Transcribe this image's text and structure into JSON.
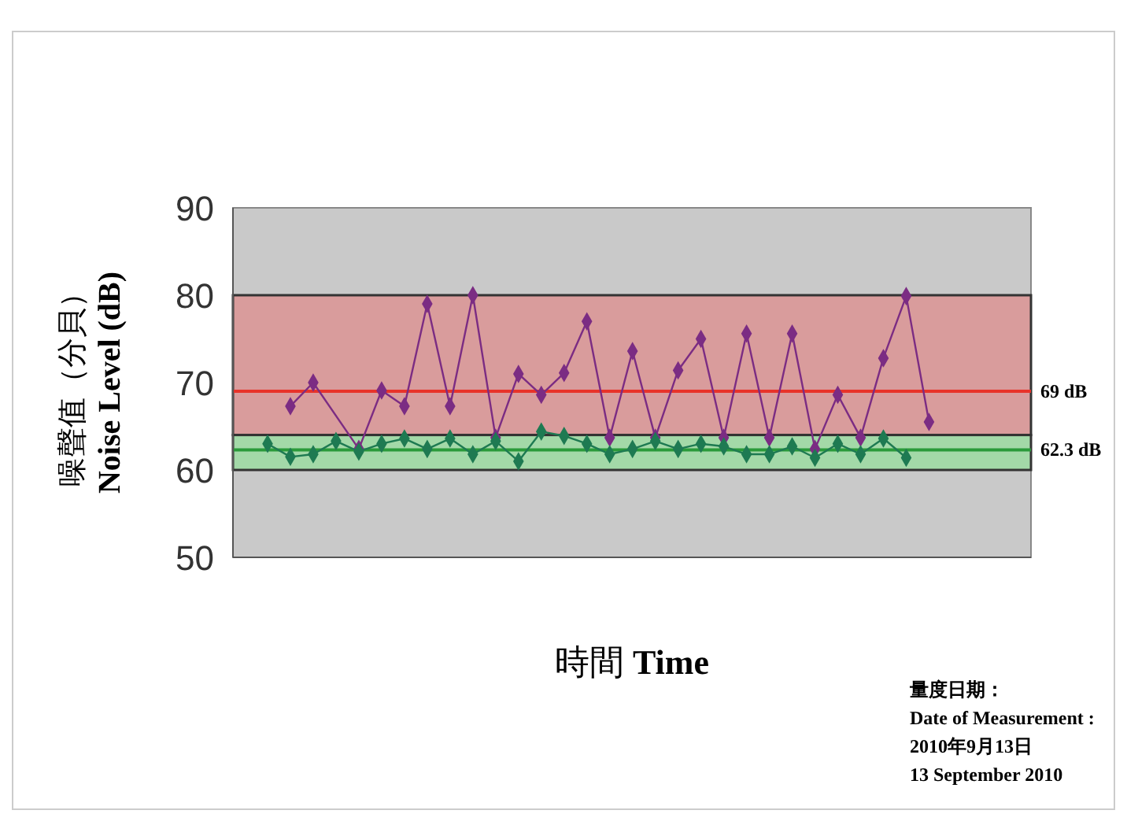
{
  "chart_data": {
    "type": "line",
    "xlabel": "時間 Time",
    "ylabel": "噪聲值（分貝）\nNoise Level (dB)",
    "categories": [
      null,
      null,
      null,
      null,
      null,
      null,
      null,
      null,
      null,
      null,
      null,
      null,
      null,
      null,
      null,
      null,
      null,
      null,
      null,
      null,
      null,
      null,
      null,
      null,
      null,
      null,
      null,
      null,
      null,
      null
    ],
    "ylim": [
      50,
      90
    ],
    "yticks": [
      50,
      60,
      70,
      80,
      90
    ],
    "tick_labels": "y",
    "grid": false,
    "marker": "diamond",
    "line_style": "solid",
    "series": [
      {
        "color": "#7b2c83",
        "values": [
          null,
          67.3,
          70.0,
          null,
          62.4,
          69.1,
          67.3,
          79,
          67.3,
          80,
          63.7,
          71,
          68.6,
          71.1,
          77,
          63.7,
          73.6,
          63.7,
          71.4,
          75,
          63.7,
          75.6,
          63.7,
          75.6,
          62.4,
          68.6,
          63.7,
          72.8,
          79.9,
          65.5
        ]
      },
      {
        "color": "#1e7a52",
        "values": [
          63.0,
          61.5,
          61.8,
          63.3,
          62.1,
          63.0,
          63.6,
          62.4,
          63.6,
          61.8,
          63.3,
          61.0,
          64.4,
          63.9,
          63.0,
          61.8,
          62.4,
          63.3,
          62.4,
          63.0,
          62.7,
          61.8,
          61.8,
          62.7,
          61.4,
          63.0,
          61.8,
          63.6,
          61.4,
          null
        ]
      }
    ],
    "bands": [
      {
        "axis": "y",
        "from": 64,
        "to": 80,
        "color": "#d99c9c"
      },
      {
        "axis": "y",
        "from": 60,
        "to": 64,
        "color": "#a3d9a8"
      }
    ],
    "ref_lines": [
      {
        "axis": "y",
        "value": 69,
        "label": "69 dB",
        "color": "#e8332a"
      },
      {
        "axis": "y",
        "value": 62.3,
        "label": "62.3 dB",
        "color": "#2a9a3a"
      }
    ],
    "annotations": [
      "量度日期：",
      "Date of Measurement :",
      "2010年9月13日",
      "13 September 2010"
    ]
  }
}
